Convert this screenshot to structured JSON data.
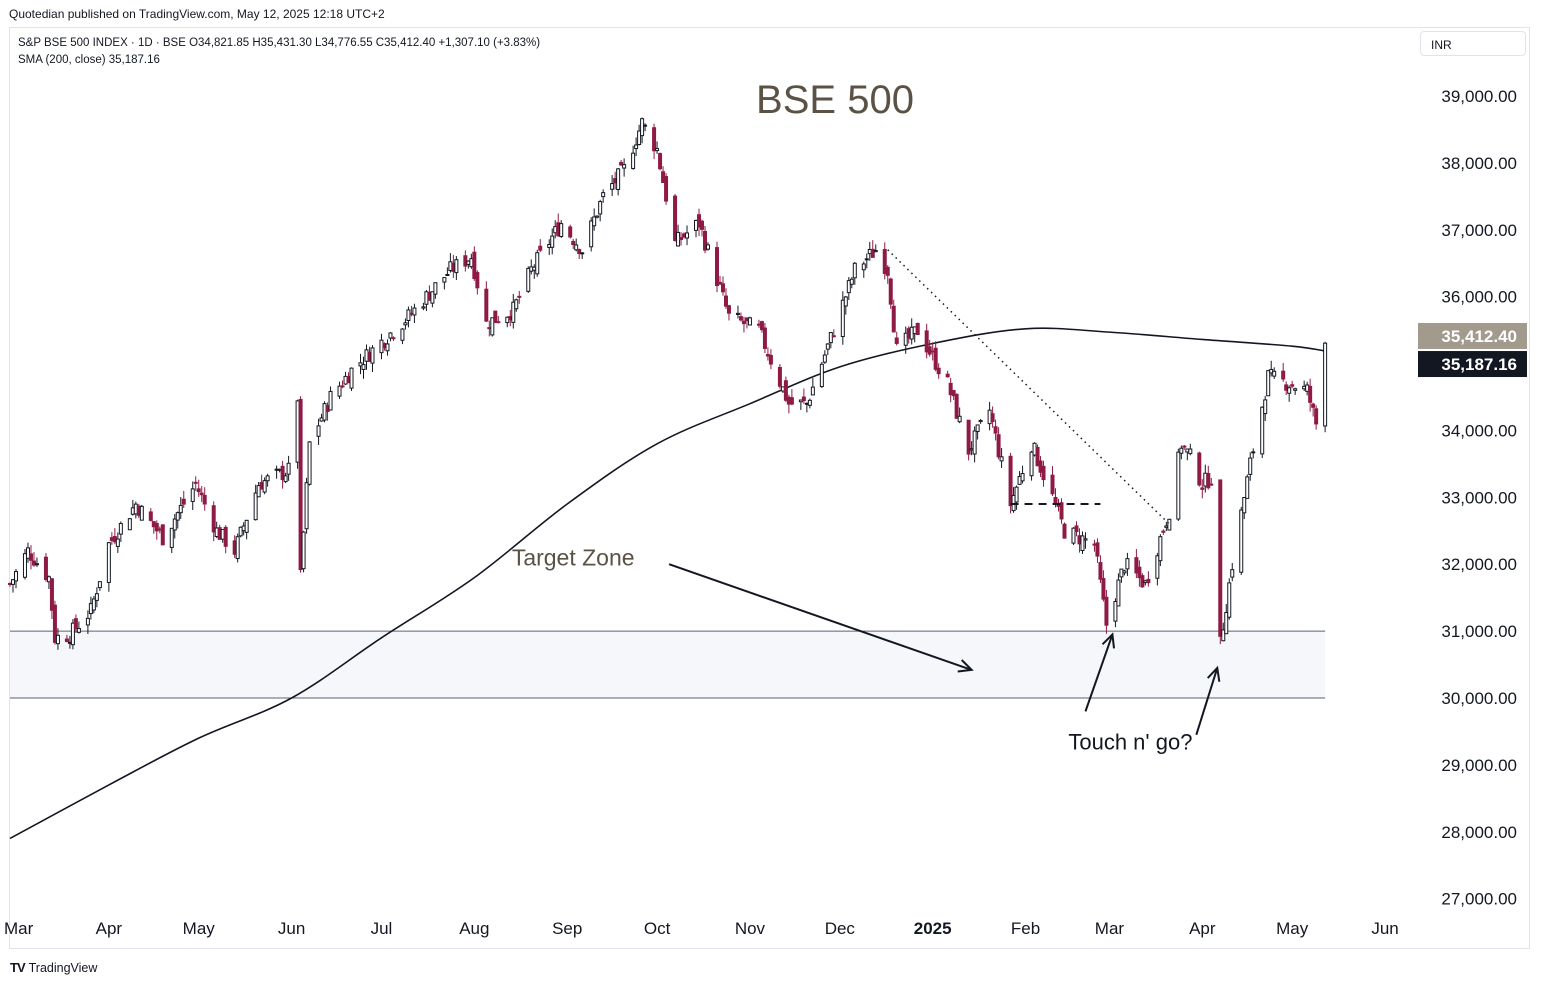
{
  "header": {
    "published": "Quotedian published on TradingView.com, May 12, 2025 12:18 UTC+2"
  },
  "legend": {
    "line1": "S&P BSE 500 INDEX · 1D · BSE  O34,821.85  H35,431.30  L34,776.55  C35,412.40  +1,307.10 (+3.83%)",
    "line2": "SMA (200, close)  35,187.16"
  },
  "currency": "INR",
  "footer": {
    "brand": "TradingView",
    "icon": "tradingview-logo-icon"
  },
  "colors": {
    "up": "#131722",
    "down": "#8e1b45",
    "sma": "#131722",
    "zone_fill": "#f6f7fa",
    "zone_border": "#5a6273",
    "last_price_badge": "#a39a8e",
    "sma_badge": "#131722",
    "annotation": "#5b5246"
  },
  "chart_data": {
    "type": "candlestick",
    "title": "BSE 500",
    "ylim": [
      26500,
      39800
    ],
    "y_ticks": [
      "27,000.00",
      "28,000.00",
      "29,000.00",
      "30,000.00",
      "31,000.00",
      "32,000.00",
      "33,000.00",
      "34,000.00",
      "35,000.00",
      "36,000.00",
      "37,000.00",
      "38,000.00",
      "39,000.00"
    ],
    "y_tick_values": [
      27000,
      28000,
      29000,
      30000,
      31000,
      32000,
      33000,
      34000,
      35000,
      36000,
      37000,
      38000,
      39000
    ],
    "x_ticks": [
      {
        "label": "Mar",
        "date": "2024-03-01",
        "bold": false
      },
      {
        "label": "Apr",
        "date": "2024-04-01",
        "bold": false
      },
      {
        "label": "May",
        "date": "2024-05-01",
        "bold": false
      },
      {
        "label": "Jun",
        "date": "2024-06-01",
        "bold": false
      },
      {
        "label": "Jul",
        "date": "2024-07-01",
        "bold": false
      },
      {
        "label": "Aug",
        "date": "2024-08-01",
        "bold": false
      },
      {
        "label": "Sep",
        "date": "2024-09-01",
        "bold": false
      },
      {
        "label": "Oct",
        "date": "2024-10-01",
        "bold": false
      },
      {
        "label": "Nov",
        "date": "2024-11-01",
        "bold": false
      },
      {
        "label": "Dec",
        "date": "2024-12-01",
        "bold": false
      },
      {
        "label": "2025",
        "date": "2025-01-01",
        "bold": true
      },
      {
        "label": "Feb",
        "date": "2025-02-01",
        "bold": false
      },
      {
        "label": "Mar",
        "date": "2025-03-01",
        "bold": false
      },
      {
        "label": "Apr",
        "date": "2025-04-01",
        "bold": false
      },
      {
        "label": "May",
        "date": "2025-05-01",
        "bold": false
      },
      {
        "label": "Jun",
        "date": "2025-06-01",
        "bold": false
      }
    ],
    "xlim": [
      "2024-02-28",
      "2025-06-10"
    ],
    "price_path": [
      [
        "2024-02-28",
        31700
      ],
      [
        "2024-03-05",
        32200
      ],
      [
        "2024-03-12",
        31800
      ],
      [
        "2024-03-14",
        30900
      ],
      [
        "2024-03-19",
        30950
      ],
      [
        "2024-03-26",
        31300
      ],
      [
        "2024-04-01",
        32300
      ],
      [
        "2024-04-10",
        32900
      ],
      [
        "2024-04-19",
        32400
      ],
      [
        "2024-04-30",
        33200
      ],
      [
        "2024-05-07",
        32500
      ],
      [
        "2024-05-13",
        32200
      ],
      [
        "2024-05-21",
        33200
      ],
      [
        "2024-05-31",
        33400
      ],
      [
        "2024-06-03",
        34500
      ],
      [
        "2024-06-04",
        31800
      ],
      [
        "2024-06-07",
        33800
      ],
      [
        "2024-06-14",
        34500
      ],
      [
        "2024-06-21",
        34900
      ],
      [
        "2024-06-28",
        35200
      ],
      [
        "2024-07-10",
        35700
      ],
      [
        "2024-07-24",
        36400
      ],
      [
        "2024-07-31",
        36600
      ],
      [
        "2024-08-05",
        35600
      ],
      [
        "2024-08-14",
        35800
      ],
      [
        "2024-08-20",
        36400
      ],
      [
        "2024-08-30",
        37100
      ],
      [
        "2024-09-06",
        36700
      ],
      [
        "2024-09-13",
        37500
      ],
      [
        "2024-09-20",
        37900
      ],
      [
        "2024-09-26",
        38600
      ],
      [
        "2024-10-01",
        38200
      ],
      [
        "2024-10-07",
        36800
      ],
      [
        "2024-10-15",
        37100
      ],
      [
        "2024-10-25",
        35700
      ],
      [
        "2024-11-04",
        35500
      ],
      [
        "2024-11-14",
        34400
      ],
      [
        "2024-11-20",
        34400
      ],
      [
        "2024-11-29",
        35500
      ],
      [
        "2024-12-06",
        36400
      ],
      [
        "2024-12-13",
        36700
      ],
      [
        "2024-12-17",
        36400
      ],
      [
        "2024-12-20",
        35200
      ],
      [
        "2024-12-27",
        35500
      ],
      [
        "2025-01-06",
        34700
      ],
      [
        "2025-01-13",
        33700
      ],
      [
        "2025-01-20",
        34300
      ],
      [
        "2025-01-27",
        32900
      ],
      [
        "2025-02-03",
        33800
      ],
      [
        "2025-02-10",
        33000
      ],
      [
        "2025-02-14",
        32500
      ],
      [
        "2025-02-24",
        32300
      ],
      [
        "2025-02-28",
        31100
      ],
      [
        "2025-03-06",
        32000
      ],
      [
        "2025-03-13",
        31700
      ],
      [
        "2025-03-21",
        32800
      ],
      [
        "2025-03-25",
        33800
      ],
      [
        "2025-03-28",
        33600
      ],
      [
        "2025-04-01",
        33200
      ],
      [
        "2025-04-04",
        33300
      ],
      [
        "2025-04-07",
        30800
      ],
      [
        "2025-04-11",
        32000
      ],
      [
        "2025-04-17",
        33500
      ],
      [
        "2025-04-23",
        34800
      ],
      [
        "2025-04-30",
        34700
      ],
      [
        "2025-05-06",
        34600
      ],
      [
        "2025-05-09",
        34100
      ],
      [
        "2025-05-12",
        35412.4
      ]
    ],
    "sma_200": [
      [
        "2024-02-28",
        27900
      ],
      [
        "2024-04-01",
        28700
      ],
      [
        "2024-05-01",
        29400
      ],
      [
        "2024-06-01",
        30000
      ],
      [
        "2024-07-01",
        30900
      ],
      [
        "2024-08-01",
        31800
      ],
      [
        "2024-09-01",
        32900
      ],
      [
        "2024-10-01",
        33800
      ],
      [
        "2024-11-01",
        34400
      ],
      [
        "2024-12-01",
        34950
      ],
      [
        "2025-01-01",
        35300
      ],
      [
        "2025-02-01",
        35520
      ],
      [
        "2025-03-01",
        35470
      ],
      [
        "2025-04-01",
        35360
      ],
      [
        "2025-05-01",
        35260
      ],
      [
        "2025-05-12",
        35187.16
      ]
    ],
    "last_price": {
      "value": 35412.4,
      "label": "35,412.40"
    },
    "sma_last": {
      "value": 35187.16,
      "label": "35,187.16"
    },
    "target_zone": {
      "y_low": 30000,
      "y_high": 31000,
      "x_start": "2024-02-28",
      "x_end": "2025-05-12"
    },
    "trendline": {
      "from": [
        "2024-12-17",
        36700
      ],
      "to": [
        "2025-03-21",
        32600
      ],
      "style": "dotted"
    },
    "support_line": {
      "from": [
        "2025-01-27",
        32900
      ],
      "to": [
        "2025-02-26",
        32900
      ],
      "style": "dashed"
    },
    "annotations": {
      "title": "BSE 500",
      "target_zone_label": "Target Zone",
      "target_zone_label_at": [
        "2024-09-03",
        32100
      ],
      "target_zone_arrow": {
        "from": [
          "2024-10-05",
          32000
        ],
        "to": [
          "2025-01-14",
          30420
        ]
      },
      "touch_label": "Touch n' go?",
      "touch_label_at": [
        "2025-03-08",
        29350
      ],
      "touch_arrows": [
        {
          "from": [
            "2025-02-21",
            29800
          ],
          "to": [
            "2025-03-02",
            30950
          ]
        },
        {
          "from": [
            "2025-03-30",
            29450
          ],
          "to": [
            "2025-04-06",
            30450
          ]
        }
      ]
    }
  }
}
